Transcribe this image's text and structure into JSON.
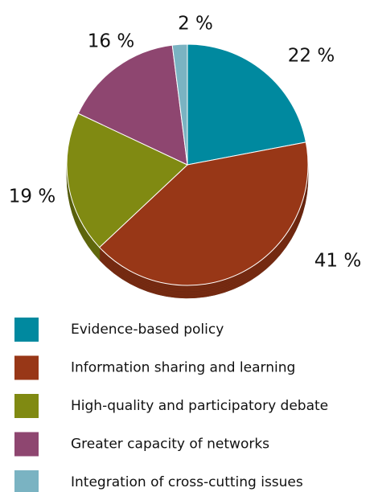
{
  "chart_data": {
    "type": "pie",
    "categories": [
      "Evidence-based policy",
      "Information sharing and learning",
      "High-quality and participatory debate",
      "Greater capacity of networks",
      "Integration of cross-cutting issues"
    ],
    "values": [
      22,
      41,
      19,
      16,
      2
    ],
    "value_labels": [
      "22 %",
      "41 %",
      "19 %",
      "16 %",
      "2 %"
    ],
    "colors": [
      "#00899f",
      "#983717",
      "#808a12",
      "#8e4670",
      "#7ab3c2"
    ],
    "legend": "bottom"
  }
}
